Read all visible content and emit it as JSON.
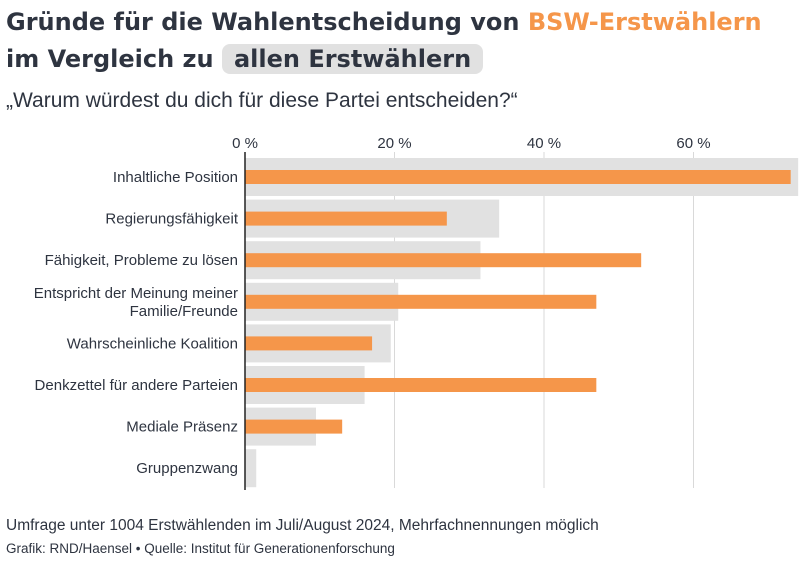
{
  "title": {
    "part1": "Gründe für die Wahlentscheidung von ",
    "highlight_bsw": "BSW-Erstwählern",
    "part2": " im Vergleich zu ",
    "highlight_all": "allen Erstwählern"
  },
  "subtitle": "„Warum würdest du dich für diese Partei entscheiden?“",
  "footer": {
    "note": "Umfrage unter 1004 Erstwählenden im Juli/August 2024, Mehrfachnennungen möglich",
    "credit": "Grafik: RND/Haensel • Quelle: Institut für Generationenforschung"
  },
  "colors": {
    "bsw": "#f5964a",
    "all": "#e1e1e1",
    "text": "#2e3440",
    "grid": "#d9d9d9"
  },
  "chart_data": {
    "type": "bar",
    "orientation": "horizontal",
    "categories": [
      "Inhaltliche Position",
      "Regierungsfähigkeit",
      "Fähigkeit, Probleme zu lösen",
      "Entspricht der Meinung meiner Familie/Freunde",
      "Wahrscheinliche Koalition",
      "Denkzettel für andere Parteien",
      "Mediale Präsenz",
      "Gruppenzwang"
    ],
    "series": [
      {
        "name": "allen Erstwählern",
        "values": [
          74,
          34,
          31.5,
          20.5,
          19.5,
          16,
          9.5,
          1.5
        ]
      },
      {
        "name": "BSW-Erstwählern",
        "values": [
          73,
          27,
          53,
          47,
          17,
          47,
          13,
          0
        ]
      }
    ],
    "xticks": [
      "0 %",
      "20 %",
      "40 %",
      "60 %"
    ],
    "xtick_values": [
      0,
      20,
      40,
      60
    ],
    "xlim": [
      0,
      74
    ],
    "grid": true
  }
}
